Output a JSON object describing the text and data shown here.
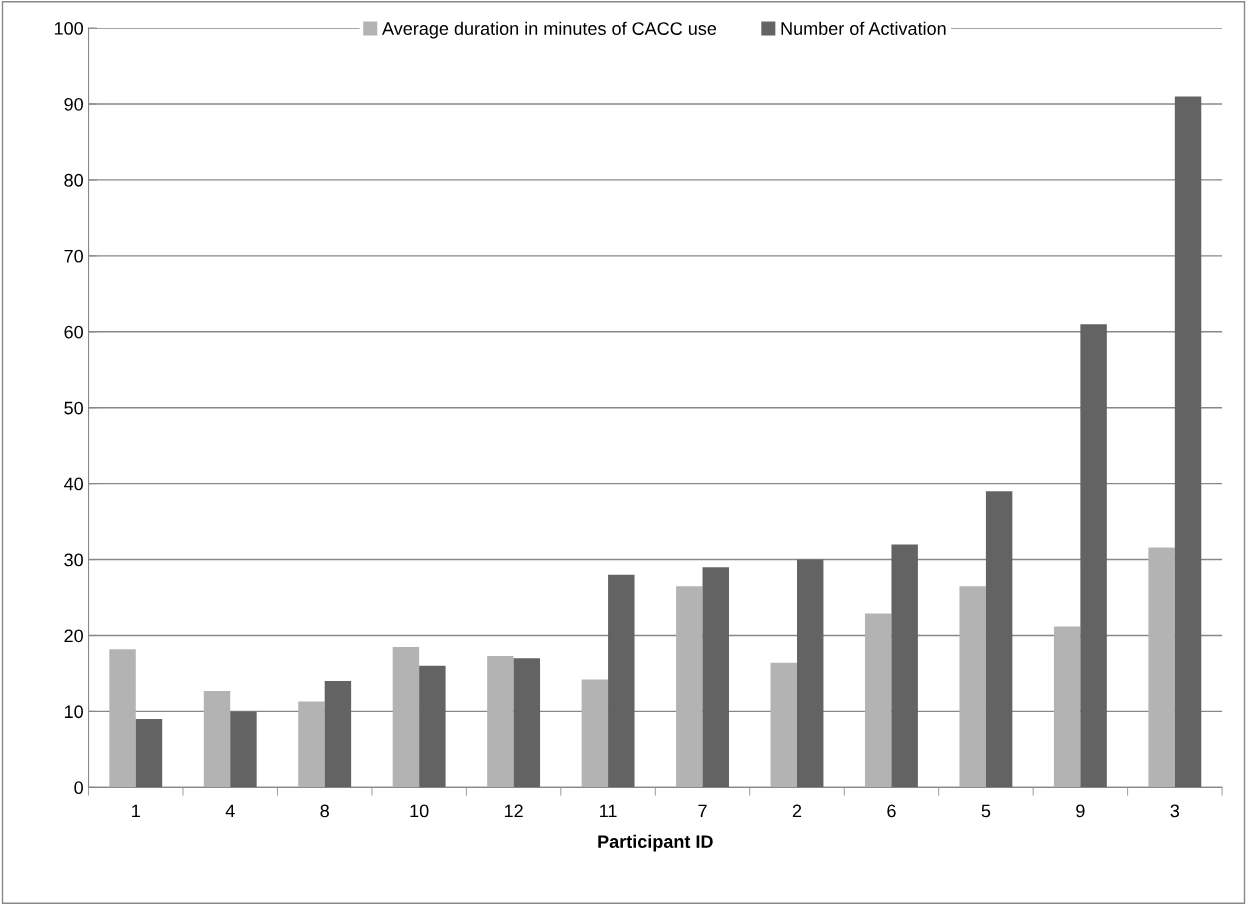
{
  "chart_data": {
    "type": "bar",
    "xlabel": "Participant ID",
    "categories": [
      "1",
      "4",
      "8",
      "10",
      "12",
      "11",
      "7",
      "2",
      "6",
      "5",
      "9",
      "3"
    ],
    "series": [
      {
        "name": "Average duration in minutes of CACC use",
        "color": "#b3b3b3",
        "values": [
          18.2,
          12.7,
          11.3,
          18.5,
          17.3,
          14.2,
          26.5,
          16.4,
          22.9,
          26.5,
          21.2,
          31.6
        ]
      },
      {
        "name": "Number of Activation",
        "color": "#636363",
        "values": [
          9,
          10,
          14,
          16,
          17,
          28,
          29,
          30,
          32,
          39,
          61,
          91
        ]
      }
    ],
    "ylim": [
      0,
      100
    ],
    "yticks": [
      0,
      10,
      20,
      30,
      40,
      50,
      60,
      70,
      80,
      90,
      100
    ],
    "grid": "y",
    "legend": "top"
  }
}
